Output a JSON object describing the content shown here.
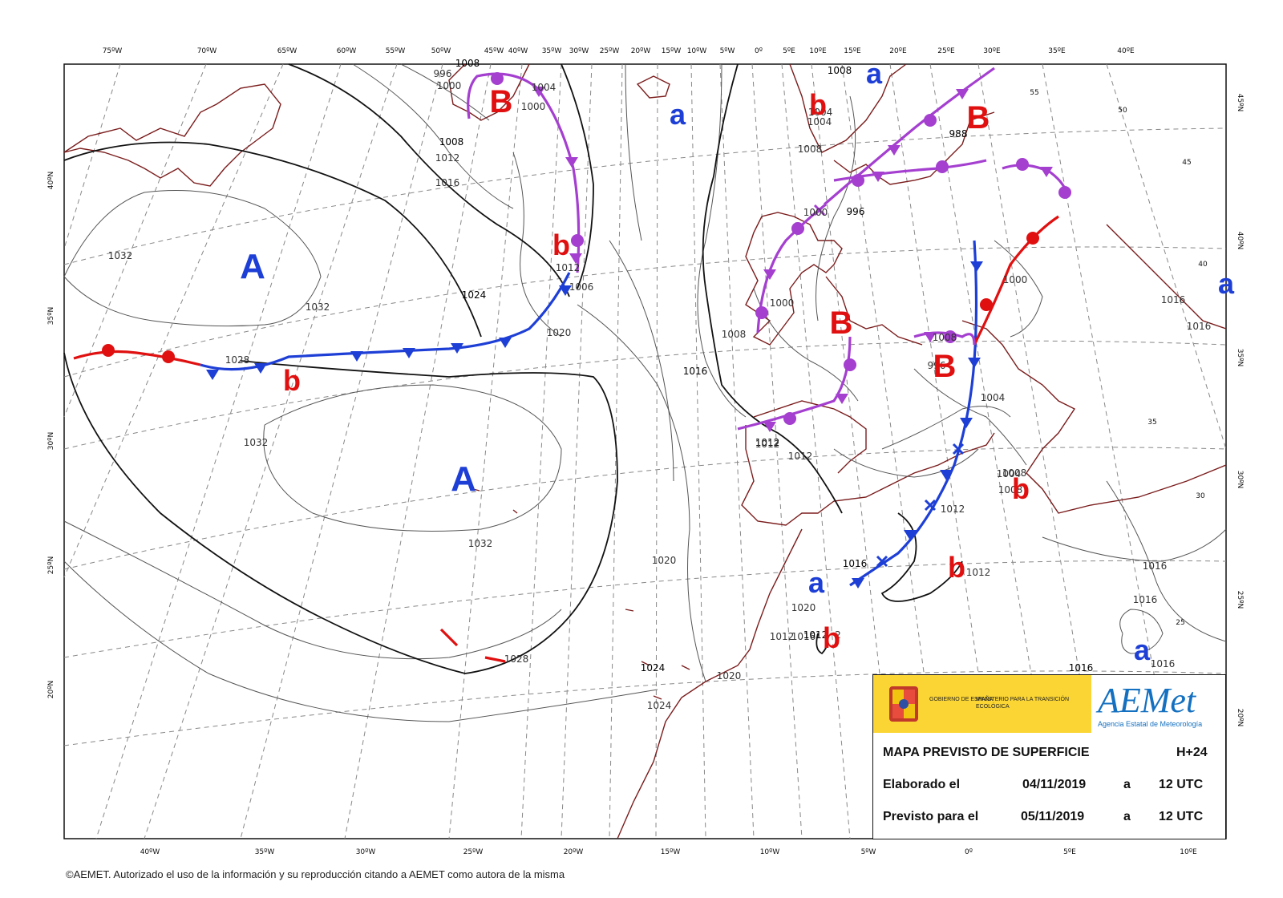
{
  "map": {
    "top_lon_labels": [
      "75ºW",
      "70ºW",
      "65ºW",
      "60ºW",
      "55ºW",
      "50ºW",
      "45ºW",
      "40ºW",
      "35ºW",
      "30ºW",
      "25ºW",
      "20ºW",
      "15ºW",
      "10ºW",
      "5ºW",
      "0º",
      "5ºE",
      "10ºE",
      "15ºE",
      "20ºE",
      "25ºE",
      "30ºE",
      "35ºE",
      "40ºE"
    ],
    "bottom_lon_labels": [
      "40ºW",
      "35ºW",
      "30ºW",
      "25ºW",
      "20ºW",
      "15ºW",
      "10ºW",
      "5ºW",
      "0º",
      "5ºE",
      "10ºE"
    ],
    "left_lat_labels": [
      "40ºN",
      "35ºN",
      "30ºN",
      "25ºN",
      "20ºN"
    ],
    "right_lat_labels": [
      "45ºN",
      "40ºN",
      "35ºN",
      "30ºN",
      "25ºN",
      "20ºN"
    ],
    "inner_lat_labels": [
      "55",
      "50",
      "45",
      "40",
      "35",
      "30",
      "25"
    ],
    "isobar_labels": [
      "1008",
      "996",
      "1000",
      "1004",
      "1000",
      "1008",
      "1012",
      "1016",
      "1032",
      "1032",
      "1024",
      "1028",
      "1012",
      "1006",
      "1020",
      "1016",
      "1032",
      "1032",
      "1028",
      "1020",
      "1024",
      "1024",
      "1020",
      "1012",
      "1016",
      "1012",
      "1012",
      "1000",
      "1008",
      "1000",
      "996",
      "1004",
      "1004",
      "1008",
      "1008",
      "1008",
      "1012",
      "1012",
      "1016",
      "1016",
      "1016",
      "1012",
      "1000",
      "1016",
      "1016",
      "1016",
      "1016",
      "1004",
      "2",
      "1020",
      "1012",
      "1004",
      "1008",
      "1008",
      "996",
      "988"
    ],
    "pressure_centers": [
      {
        "letter": "A",
        "type": "high",
        "color": "#1e3fd6"
      },
      {
        "letter": "A",
        "type": "high",
        "color": "#1e3fd6"
      },
      {
        "letter": "a",
        "type": "high",
        "color": "#1e3fd6"
      },
      {
        "letter": "a",
        "type": "high",
        "color": "#1e3fd6"
      },
      {
        "letter": "a",
        "type": "high",
        "color": "#1e3fd6"
      },
      {
        "letter": "a",
        "type": "high",
        "color": "#1e3fd6"
      },
      {
        "letter": "a",
        "type": "high",
        "color": "#1e3fd6"
      },
      {
        "letter": "B",
        "type": "low",
        "color": "#e01010"
      },
      {
        "letter": "B",
        "type": "low",
        "color": "#e01010"
      },
      {
        "letter": "B",
        "type": "low",
        "color": "#e01010"
      },
      {
        "letter": "B",
        "type": "low",
        "color": "#e01010"
      },
      {
        "letter": "b",
        "type": "low",
        "color": "#e01010"
      },
      {
        "letter": "b",
        "type": "low",
        "color": "#e01010"
      },
      {
        "letter": "b",
        "type": "low",
        "color": "#e01010"
      },
      {
        "letter": "b",
        "type": "low",
        "color": "#e01010"
      },
      {
        "letter": "b",
        "type": "low",
        "color": "#e01010"
      },
      {
        "letter": "b",
        "type": "low",
        "color": "#e01010"
      }
    ],
    "fronts": [
      {
        "type": "warm",
        "color": "#e01010"
      },
      {
        "type": "cold",
        "color": "#1e3fd6"
      },
      {
        "type": "occluded",
        "color": "#a43fd0"
      },
      {
        "type": "occluded",
        "color": "#a43fd0"
      },
      {
        "type": "warm",
        "color": "#e01010"
      },
      {
        "type": "occluded",
        "color": "#a43fd0"
      },
      {
        "type": "occluded",
        "color": "#a43fd0"
      },
      {
        "type": "cold",
        "color": "#1e3fd6"
      },
      {
        "type": "warm",
        "color": "#e01010"
      },
      {
        "type": "occluded",
        "color": "#a43fd0"
      }
    ]
  },
  "legend": {
    "gov_label": "GOBIERNO DE ESPAÑA",
    "ministry_label": "MINISTERIO PARA LA TRANSICIÓN ECOLÓGICA",
    "logo_text": "AEMet",
    "logo_sub": "Agencia Estatal de Meteorología",
    "title": "MAPA PREVISTO DE SUPERFICIE",
    "forecast_hour": "H+24",
    "elaborado_label": "Elaborado el",
    "elaborado_date": "04/11/2019",
    "elaborado_a": "a",
    "elaborado_time": "12 UTC",
    "previsto_label": "Previsto para el",
    "previsto_date": "05/11/2019",
    "previsto_a": "a",
    "previsto_time": "12 UTC"
  },
  "footer": "©AEMET. Autorizado el uso de la información y su reproducción citando a AEMET como autora de la misma"
}
